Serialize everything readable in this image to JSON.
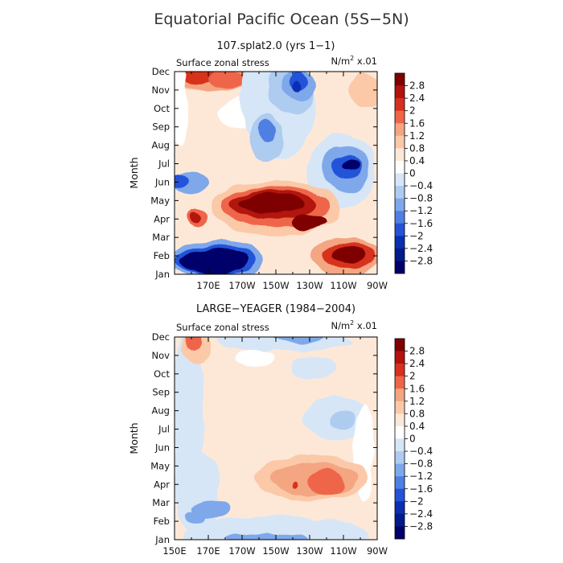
{
  "figure": {
    "title": "Equatorial Pacific Ocean (5S−5N)"
  },
  "colorbar": {
    "levels": [
      "2.8",
      "2.4",
      "2",
      "1.6",
      "1.2",
      "0.8",
      "0.4",
      "0",
      "−0.4",
      "−0.8",
      "−1.2",
      "−1.6",
      "−2",
      "−2.4",
      "−2.8"
    ],
    "colors": [
      "#7f0000",
      "#b2130f",
      "#d7301f",
      "#ef6548",
      "#f4a582",
      "#fbc9a8",
      "#fde8d8",
      "#ffffff",
      "#d6e6f7",
      "#aecbf0",
      "#7ea8ea",
      "#4f7fe3",
      "#2452d9",
      "#0a2fb0",
      "#001b8a",
      "#00006b"
    ],
    "palette": {
      "0": "#ffffff",
      "1": "#fde8d8",
      "2": "#fbc9a8",
      "3": "#f4a582",
      "4": "#ef6548",
      "5": "#d7301f",
      "6": "#b2130f",
      "7": "#7f0000",
      "-1": "#d6e6f7",
      "-2": "#aecbf0",
      "-3": "#7ea8ea",
      "-4": "#4f7fe3",
      "-5": "#2452d9",
      "-6": "#0a2fb0",
      "-7": "#00006b"
    }
  },
  "chart_data": [
    {
      "type": "heatmap",
      "subtitle": "107.splat2.0 (yrs 1−1)",
      "variable": "Surface zonal stress",
      "units_prefix": "N/m",
      "units_exp": "2",
      "units_suffix": " x.01",
      "ylabel": "Month",
      "xlim": [
        150,
        270
      ],
      "x_ticks": [
        "170E",
        "170W",
        "150W",
        "130W",
        "110W",
        "90W"
      ],
      "y_ticks": [
        "Jan",
        "Feb",
        "Mar",
        "Apr",
        "May",
        "Jun",
        "Jul",
        "Aug",
        "Sep",
        "Oct",
        "Nov",
        "Dec"
      ],
      "levels": [
        -2.8,
        -2.4,
        -2,
        -1.6,
        -1.2,
        -0.8,
        -0.4,
        0,
        0.4,
        0.8,
        1.2,
        1.6,
        2,
        2.4,
        2.8
      ],
      "background_level": 1,
      "blobs": [
        {
          "lon": 165,
          "month": 12,
          "rx": 17,
          "ry": 1.0,
          "level": 2
        },
        {
          "lon": 175,
          "month": 11.8,
          "rx": 28,
          "ry": 0.8,
          "level": 3
        },
        {
          "lon": 165,
          "month": 11.9,
          "rx": 14,
          "ry": 0.55,
          "level": 5
        },
        {
          "lon": 182,
          "month": 11.6,
          "rx": 12,
          "ry": 0.5,
          "level": 4
        },
        {
          "lon": 263,
          "month": 10.9,
          "rx": 10,
          "ry": 0.9,
          "level": 2
        },
        {
          "lon": 201,
          "month": 9.8,
          "rx": 25,
          "ry": 1.0,
          "level": 0
        },
        {
          "lon": 153,
          "month": 10,
          "rx": 5,
          "ry": 2.2,
          "level": 0
        },
        {
          "lon": 211,
          "month": 10.5,
          "rx": 22,
          "ry": 3.3,
          "level": -1
        },
        {
          "lon": 219,
          "month": 11.1,
          "rx": 14,
          "ry": 1.4,
          "level": -2
        },
        {
          "lon": 224,
          "month": 11.3,
          "rx": 10,
          "ry": 0.85,
          "level": -3
        },
        {
          "lon": 224,
          "month": 11.5,
          "rx": 6,
          "ry": 0.5,
          "level": -5
        },
        {
          "lon": 223,
          "month": 11.2,
          "rx": 3,
          "ry": 0.3,
          "level": -6
        },
        {
          "lon": 204,
          "month": 8.4,
          "rx": 10,
          "ry": 1.3,
          "level": -2
        },
        {
          "lon": 204,
          "month": 8.8,
          "rx": 6,
          "ry": 0.6,
          "level": -4
        },
        {
          "lon": 249,
          "month": 6.6,
          "rx": 20,
          "ry": 2.0,
          "level": -1
        },
        {
          "lon": 251,
          "month": 6.7,
          "rx": 14,
          "ry": 1.3,
          "level": -3
        },
        {
          "lon": 252,
          "month": 6.8,
          "rx": 9,
          "ry": 0.7,
          "level": -5
        },
        {
          "lon": 255,
          "month": 6.9,
          "rx": 5,
          "ry": 0.3,
          "level": -7
        },
        {
          "lon": 160,
          "month": 6.0,
          "rx": 10,
          "ry": 0.7,
          "level": -3
        },
        {
          "lon": 153,
          "month": 6.1,
          "rx": 5,
          "ry": 0.4,
          "level": -5
        },
        {
          "lon": 210,
          "month": 4.6,
          "rx": 38,
          "ry": 1.5,
          "level": 2
        },
        {
          "lon": 210,
          "month": 4.7,
          "rx": 32,
          "ry": 1.1,
          "level": 4
        },
        {
          "lon": 209,
          "month": 4.8,
          "rx": 26,
          "ry": 0.78,
          "level": 6
        },
        {
          "lon": 208,
          "month": 4.85,
          "rx": 20,
          "ry": 0.52,
          "level": 7
        },
        {
          "lon": 229,
          "month": 3.85,
          "rx": 10,
          "ry": 0.42,
          "level": 7
        },
        {
          "lon": 163,
          "month": 4.1,
          "rx": 6,
          "ry": 0.5,
          "level": 4
        },
        {
          "lon": 162,
          "month": 4.1,
          "rx": 3,
          "ry": 0.3,
          "level": 6
        },
        {
          "lon": 251,
          "month": 2.0,
          "rx": 20,
          "ry": 1.0,
          "level": 3
        },
        {
          "lon": 253,
          "month": 2.0,
          "rx": 15,
          "ry": 0.65,
          "level": 5
        },
        {
          "lon": 253,
          "month": 2.0,
          "rx": 9,
          "ry": 0.4,
          "level": 7
        },
        {
          "lon": 175,
          "month": 1.8,
          "rx": 28,
          "ry": 1.05,
          "level": -3
        },
        {
          "lon": 174,
          "month": 1.75,
          "rx": 24,
          "ry": 0.8,
          "level": -5
        },
        {
          "lon": 173,
          "month": 1.7,
          "rx": 20,
          "ry": 0.65,
          "level": -7
        }
      ]
    },
    {
      "type": "heatmap",
      "subtitle": "LARGE−YEAGER (1984−2004)",
      "variable": "Surface zonal stress",
      "units_prefix": "N/m",
      "units_exp": "2",
      "units_suffix": " x.01",
      "ylabel": "Month",
      "xlim": [
        150,
        270
      ],
      "x_ticks": [
        "150E",
        "170E",
        "170W",
        "150W",
        "130W",
        "110W",
        "90W"
      ],
      "y_ticks": [
        "Jan",
        "Feb",
        "Mar",
        "Apr",
        "May",
        "Jun",
        "Jul",
        "Aug",
        "Sep",
        "Oct",
        "Nov",
        "Dec"
      ],
      "levels": [
        -2.8,
        -2.4,
        -2,
        -1.6,
        -1.2,
        -0.8,
        -0.4,
        0,
        0.4,
        0.8,
        1.2,
        1.6,
        2,
        2.4,
        2.8
      ],
      "background_level": 1,
      "blobs": [
        {
          "lon": 158,
          "month": 7.5,
          "rx": 9,
          "ry": 5.0,
          "level": -1
        },
        {
          "lon": 163,
          "month": 3.6,
          "rx": 14,
          "ry": 2.3,
          "level": -1
        },
        {
          "lon": 210,
          "month": 1.25,
          "rx": 55,
          "ry": 1.0,
          "level": -1
        },
        {
          "lon": 205,
          "month": 1.0,
          "rx": 25,
          "ry": 0.35,
          "level": -3
        },
        {
          "lon": 172,
          "month": 2.7,
          "rx": 12,
          "ry": 0.55,
          "level": -3
        },
        {
          "lon": 162,
          "month": 2.2,
          "rx": 6,
          "ry": 0.35,
          "level": -3
        },
        {
          "lon": 245,
          "month": 7.6,
          "rx": 18,
          "ry": 1.2,
          "level": -1
        },
        {
          "lon": 249,
          "month": 7.5,
          "rx": 8,
          "ry": 0.55,
          "level": -2
        },
        {
          "lon": 262,
          "month": 5.7,
          "rx": 6,
          "ry": 2.6,
          "level": 0
        },
        {
          "lon": 215,
          "month": 11.8,
          "rx": 40,
          "ry": 0.6,
          "level": -1
        },
        {
          "lon": 222,
          "month": 12.0,
          "rx": 16,
          "ry": 0.3,
          "level": -3
        },
        {
          "lon": 197,
          "month": 10.8,
          "rx": 12,
          "ry": 0.5,
          "level": 0
        },
        {
          "lon": 232,
          "month": 10.3,
          "rx": 14,
          "ry": 0.6,
          "level": -1
        },
        {
          "lon": 163,
          "month": 11.5,
          "rx": 9,
          "ry": 0.9,
          "level": 2
        },
        {
          "lon": 161,
          "month": 11.8,
          "rx": 5,
          "ry": 0.5,
          "level": 4
        },
        {
          "lon": 231,
          "month": 4.4,
          "rx": 34,
          "ry": 1.2,
          "level": 2
        },
        {
          "lon": 233,
          "month": 4.3,
          "rx": 26,
          "ry": 0.85,
          "level": 3
        },
        {
          "lon": 240,
          "month": 4.1,
          "rx": 10,
          "ry": 0.65,
          "level": 4
        },
        {
          "lon": 222,
          "month": 4.0,
          "rx": 2,
          "ry": 0.15,
          "level": 5
        }
      ]
    }
  ]
}
